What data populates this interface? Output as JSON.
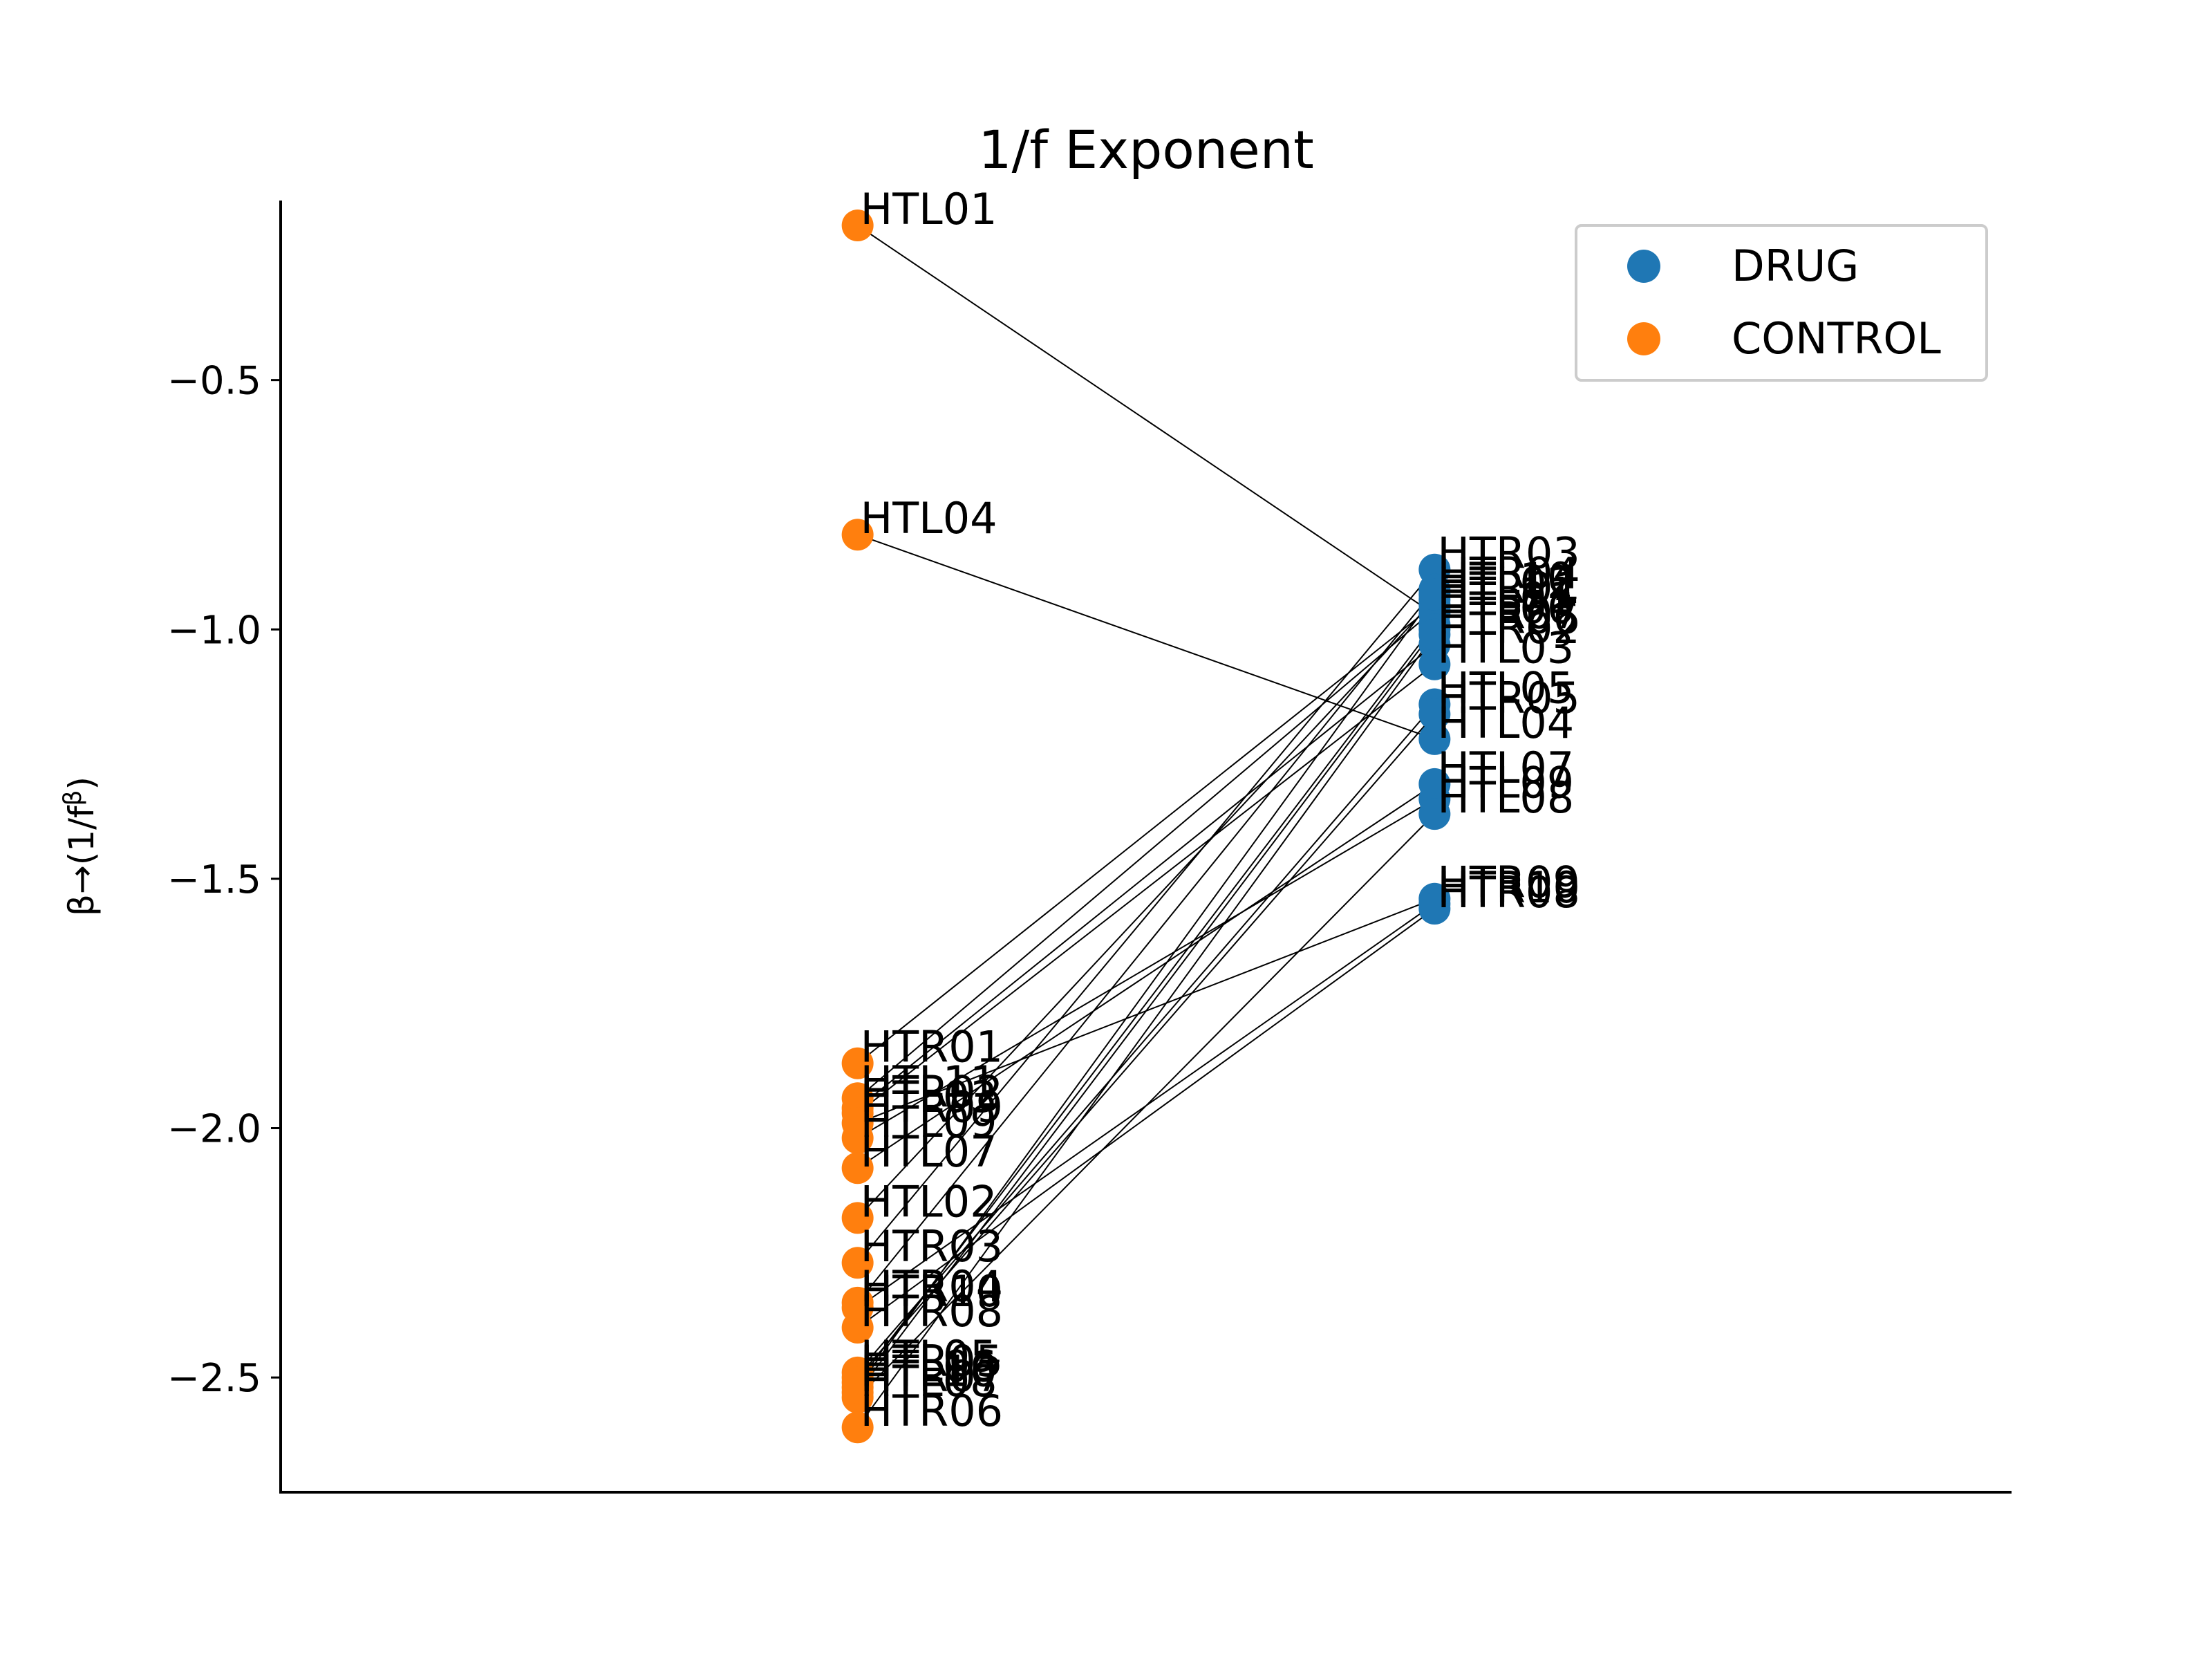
{
  "chart_data": {
    "type": "scatter",
    "title": "1/f Exponent",
    "xlabel": "",
    "ylabel": "β→(1/f^β)",
    "ylabel_parts": {
      "main": "β→(1/f",
      "sup": "β",
      "close": ")"
    },
    "ylim": [
      -2.73,
      -0.14
    ],
    "yticks": [
      -0.5,
      -1.0,
      -1.5,
      -2.0,
      -2.5
    ],
    "ytick_labels": [
      "−0.5",
      "−1.0",
      "−1.5",
      "−2.0",
      "−2.5"
    ],
    "x_positions": {
      "CONTROL": 0,
      "DRUG": 1
    },
    "xlim": [
      -1,
      2
    ],
    "grid": false,
    "legend_position": "top-right",
    "colors": {
      "DRUG": "#1f77b4",
      "CONTROL": "#ff7f0e",
      "line": "#000000"
    },
    "legend": [
      {
        "label": "DRUG",
        "color": "#1f77b4"
      },
      {
        "label": "CONTROL",
        "color": "#ff7f0e"
      }
    ],
    "subjects": [
      {
        "label": "HTL01",
        "control": -0.19,
        "drug": -0.97
      },
      {
        "label": "HTL04",
        "control": -0.81,
        "drug": -1.22
      },
      {
        "label": "HTR01",
        "control": -1.87,
        "drug": -0.95
      },
      {
        "label": "HTL11",
        "control": -1.94,
        "drug": -0.96
      },
      {
        "label": "HTR02",
        "control": -1.96,
        "drug": -1.03
      },
      {
        "label": "HTL03",
        "control": -1.97,
        "drug": -1.07
      },
      {
        "label": "HTR09",
        "control": -1.99,
        "drug": -1.54
      },
      {
        "label": "HTL09",
        "control": -2.02,
        "drug": -1.34
      },
      {
        "label": "HTL07",
        "control": -2.08,
        "drug": -1.31
      },
      {
        "label": "HTL02",
        "control": -2.18,
        "drug": -0.94
      },
      {
        "label": "HTR03",
        "control": -2.27,
        "drug": -0.88
      },
      {
        "label": "HTR04",
        "control": -2.35,
        "drug": -0.92
      },
      {
        "label": "HTR10",
        "control": -2.36,
        "drug": -1.55
      },
      {
        "label": "HTR08",
        "control": -2.4,
        "drug": -1.56
      },
      {
        "label": "HTL05",
        "control": -2.49,
        "drug": -1.15
      },
      {
        "label": "HTR05",
        "control": -2.5,
        "drug": -1.17
      },
      {
        "label": "HTL06",
        "control": -2.51,
        "drug": -0.99
      },
      {
        "label": "HTR07",
        "control": -2.53,
        "drug": -1.0
      },
      {
        "label": "HTL08",
        "control": -2.54,
        "drug": -1.37
      },
      {
        "label": "HTR06",
        "control": -2.6,
        "drug": -1.01
      },
      {
        "label": "HTL10",
        "control": -2.52,
        "drug": -0.93
      }
    ]
  }
}
